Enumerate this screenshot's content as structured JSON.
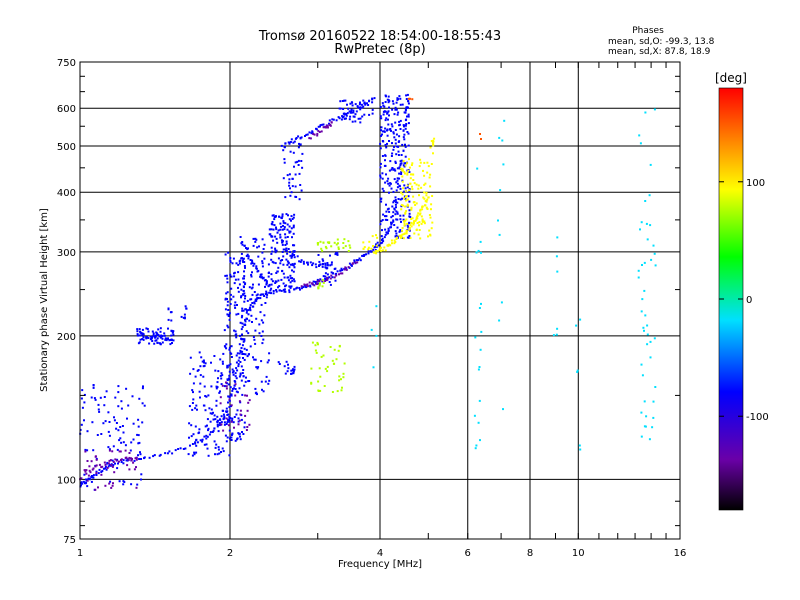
{
  "chart_data": {
    "type": "scatter",
    "title": "Tromsø 20160522 18:54:00-18:55:43",
    "subtitle": "RwPretec (8p)",
    "xlabel": "Frequency [MHz]",
    "ylabel": "Stationary phase Virtual Height [km]",
    "x_scale": "log",
    "y_scale": "log",
    "xlim": [
      1,
      16
    ],
    "ylim": [
      75,
      750
    ],
    "x_ticks": [
      1,
      2,
      4,
      6,
      8,
      10,
      16
    ],
    "x_tick_labels": [
      "1",
      "2",
      "4",
      "6",
      "8",
      "10",
      "16"
    ],
    "y_ticks": [
      75,
      100,
      200,
      300,
      400,
      500,
      600,
      750
    ],
    "y_tick_labels": [
      "75",
      "100",
      "200",
      "300",
      "400",
      "500",
      "600",
      "750"
    ],
    "grid": true,
    "stats": {
      "heading": "Phases",
      "o_line": "mean, sd,O: -99.3, 13.8",
      "x_line": "mean, sd,X:  87.8, 18.9"
    },
    "colorbar": {
      "label": "[deg]",
      "range": [
        -180,
        180
      ],
      "ticks": [
        100,
        0,
        -100
      ],
      "tick_labels": [
        "100",
        "0",
        "-100"
      ]
    },
    "series": [
      {
        "color_phase": -100,
        "segments": [
          [
            [
              1.0,
              97
            ],
            [
              1.04,
              100
            ],
            [
              1.08,
              103
            ],
            [
              1.15,
              108
            ],
            [
              1.3,
              110
            ],
            [
              1.5,
              113
            ],
            [
              1.7,
              118
            ],
            [
              1.85,
              126
            ],
            [
              1.95,
              135
            ],
            [
              2.02,
              150
            ],
            [
              2.08,
              175
            ],
            [
              2.12,
              205
            ],
            [
              2.18,
              225
            ],
            [
              2.25,
              238
            ],
            [
              2.35,
              245
            ],
            [
              2.5,
              248
            ],
            [
              2.7,
              250
            ],
            [
              2.9,
              256
            ],
            [
              3.1,
              263
            ],
            [
              3.3,
              272
            ],
            [
              3.5,
              282
            ],
            [
              3.7,
              293
            ],
            [
              3.9,
              305
            ],
            [
              4.05,
              318
            ],
            [
              4.2,
              340
            ],
            [
              4.3,
              380
            ],
            [
              4.4,
              450
            ],
            [
              4.5,
              560
            ],
            [
              4.55,
              640
            ]
          ],
          [
            [
              2.5,
              330
            ],
            [
              2.6,
              300
            ],
            [
              2.8,
              285
            ],
            [
              3.0,
              280
            ],
            [
              3.2,
              282
            ]
          ],
          [
            [
              2.55,
              500
            ],
            [
              2.7,
              515
            ],
            [
              2.9,
              535
            ],
            [
              3.1,
              555
            ],
            [
              3.4,
              580
            ],
            [
              3.7,
              605
            ],
            [
              3.9,
              630
            ]
          ],
          [
            [
              2.1,
              320
            ],
            [
              2.2,
              290
            ],
            [
              2.3,
              270
            ],
            [
              2.4,
              255
            ]
          ],
          [
            [
              1.3,
              205
            ],
            [
              1.38,
              198
            ],
            [
              1.45,
              200
            ],
            [
              1.52,
              196
            ]
          ]
        ],
        "clusters": [
          {
            "xr": [
              1.0,
              1.35
            ],
            "yr": [
              95,
              160
            ],
            "n": 110
          },
          {
            "xr": [
              1.3,
              1.55
            ],
            "yr": [
              192,
              208
            ],
            "n": 60
          },
          {
            "xr": [
              1.5,
              1.65
            ],
            "yr": [
              215,
              232
            ],
            "n": 14
          },
          {
            "xr": [
              1.65,
              2.0
            ],
            "yr": [
              112,
              185
            ],
            "n": 140
          },
          {
            "xr": [
              1.95,
              2.15
            ],
            "yr": [
              120,
              300
            ],
            "n": 170
          },
          {
            "xr": [
              2.1,
              2.4
            ],
            "yr": [
              150,
              320
            ],
            "n": 140
          },
          {
            "xr": [
              2.4,
              2.7
            ],
            "yr": [
              250,
              360
            ],
            "n": 150
          },
          {
            "xr": [
              2.5,
              2.7
            ],
            "yr": [
              165,
              178
            ],
            "n": 18
          },
          {
            "xr": [
              2.55,
              2.8
            ],
            "yr": [
              380,
              520
            ],
            "n": 40
          },
          {
            "xr": [
              3.0,
              3.3
            ],
            "yr": [
              255,
              300
            ],
            "n": 30
          },
          {
            "xr": [
              4.0,
              4.6
            ],
            "yr": [
              320,
              640
            ],
            "n": 260
          },
          {
            "xr": [
              3.3,
              3.9
            ],
            "yr": [
              560,
              625
            ],
            "n": 50
          }
        ]
      },
      {
        "color_phase": -140,
        "segments": [
          [
            [
              1.02,
              103
            ],
            [
              1.1,
              107
            ],
            [
              1.2,
              110
            ],
            [
              1.3,
              110
            ]
          ],
          [
            [
              2.8,
              255
            ],
            [
              3.0,
              258
            ],
            [
              3.3,
              270
            ],
            [
              3.6,
              285
            ]
          ],
          [
            [
              2.9,
              520
            ],
            [
              3.1,
              545
            ],
            [
              3.2,
              560
            ]
          ]
        ],
        "clusters": [
          {
            "xr": [
              1.0,
              1.3
            ],
            "yr": [
              95,
              115
            ],
            "n": 40
          },
          {
            "xr": [
              1.9,
              2.2
            ],
            "yr": [
              125,
              160
            ],
            "n": 30
          }
        ]
      },
      {
        "color_phase": 100,
        "segments": [
          [
            [
              3.9,
              300
            ],
            [
              4.1,
              305
            ],
            [
              4.3,
              318
            ],
            [
              4.5,
              330
            ],
            [
              4.7,
              348
            ],
            [
              4.85,
              365
            ],
            [
              5.0,
              390
            ]
          ]
        ],
        "clusters": [
          {
            "xr": [
              4.4,
              5.1
            ],
            "yr": [
              320,
              470
            ],
            "n": 130
          },
          {
            "xr": [
              3.7,
              3.95
            ],
            "yr": [
              300,
              330
            ],
            "n": 14
          },
          {
            "xr": [
              5.05,
              5.15
            ],
            "yr": [
              480,
              520
            ],
            "n": 10
          }
        ]
      },
      {
        "color_phase": 70,
        "segments": [],
        "clusters": [
          {
            "xr": [
              3.0,
              3.5
            ],
            "yr": [
              300,
              320
            ],
            "n": 28
          },
          {
            "xr": [
              2.9,
              3.4
            ],
            "yr": [
              152,
              195
            ],
            "n": 40
          },
          {
            "xr": [
              3.0,
              3.1
            ],
            "yr": [
              250,
              262
            ],
            "n": 10
          }
        ]
      },
      {
        "color_phase": 160,
        "segments": [],
        "clusters": [
          {
            "xr": [
              4.55,
              4.65
            ],
            "yr": [
              625,
              640
            ],
            "n": 3
          },
          {
            "xr": [
              6.3,
              6.4
            ],
            "yr": [
              505,
              530
            ],
            "n": 2
          }
        ]
      },
      {
        "color_phase": -40,
        "segments": [],
        "clusters": [
          {
            "xr": [
              6.2,
              6.4
            ],
            "yr": [
              96,
              480
            ],
            "n": 18
          },
          {
            "xr": [
              6.9,
              7.1
            ],
            "yr": [
              110,
              630
            ],
            "n": 10
          },
          {
            "xr": [
              8.9,
              9.1
            ],
            "yr": [
              180,
              400
            ],
            "n": 6
          },
          {
            "xr": [
              9.9,
              10.1
            ],
            "yr": [
              110,
              280
            ],
            "n": 6
          },
          {
            "xr": [
              13.2,
              14.3
            ],
            "yr": [
              120,
              610
            ],
            "n": 45
          },
          {
            "xr": [
              3.85,
              3.95
            ],
            "yr": [
              170,
              250
            ],
            "n": 4
          }
        ]
      }
    ]
  }
}
